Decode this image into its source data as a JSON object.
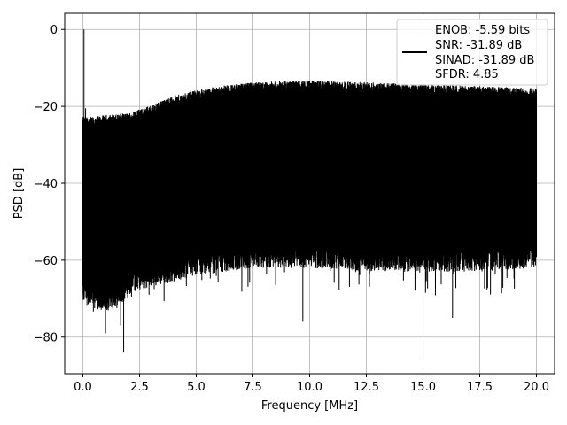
{
  "chart_data": {
    "type": "line",
    "title": "",
    "xlabel": "Frequency [MHz]",
    "ylabel": "PSD [dB]",
    "xlim": [
      -0.8,
      20.8
    ],
    "ylim": [
      -89.5,
      4.2
    ],
    "xticks": [
      0.0,
      2.5,
      5.0,
      7.5,
      10.0,
      12.5,
      15.0,
      17.5,
      20.0
    ],
    "xtick_labels": [
      "0.0",
      "2.5",
      "5.0",
      "7.5",
      "10.0",
      "12.5",
      "15.0",
      "17.5",
      "20.0"
    ],
    "yticks": [
      0,
      -20,
      -40,
      -60,
      -80
    ],
    "ytick_labels": [
      "0",
      "−20",
      "−40",
      "−60",
      "−80"
    ],
    "grid": true,
    "legend_position": "top-right",
    "legend_entries": [
      "ENOB: -5.59 bits",
      "SNR: -31.89 dB",
      "SINAD: -31.89 dB",
      "SFDR: 4.85"
    ],
    "series": [
      {
        "color": "#000000",
        "description_points": {
          "x_range": [
            0.0,
            20.0
          ],
          "peak": {
            "x": 0.05,
            "y": 0.0
          },
          "upper_envelope": [
            [
              0.0,
              -24
            ],
            [
              0.5,
              -24
            ],
            [
              1.0,
              -23.5
            ],
            [
              2.0,
              -23
            ],
            [
              3.0,
              -21
            ],
            [
              4.0,
              -18.5
            ],
            [
              5.0,
              -17
            ],
            [
              6.0,
              -16
            ],
            [
              7.5,
              -15
            ],
            [
              10.0,
              -14.5
            ],
            [
              12.5,
              -15
            ],
            [
              15.0,
              -15.5
            ],
            [
              17.5,
              -16
            ],
            [
              20.0,
              -16.5
            ]
          ],
          "lower_envelope": [
            [
              0.0,
              -65
            ],
            [
              1.0,
              -68
            ],
            [
              2.5,
              -62
            ],
            [
              5.0,
              -58
            ],
            [
              7.5,
              -56
            ],
            [
              10.0,
              -56
            ],
            [
              12.5,
              -57
            ],
            [
              15.0,
              -57
            ],
            [
              17.5,
              -57
            ],
            [
              20.0,
              -56
            ]
          ],
          "spikes": [
            [
              1.8,
              -84
            ],
            [
              15.0,
              -85.5
            ],
            [
              9.7,
              -76
            ],
            [
              1.0,
              -79
            ],
            [
              16.3,
              -75
            ]
          ]
        }
      }
    ]
  }
}
